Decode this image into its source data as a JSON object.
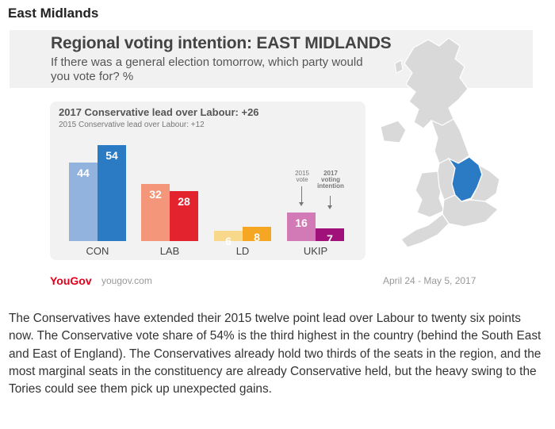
{
  "heading": "East Midlands",
  "chart": {
    "title": "Regional voting intention: EAST MIDLANDS",
    "subtitle": "If there was a general election tomorrow, which party would you vote for? %",
    "lead_2017": "2017 Conservative lead over Labour: +26",
    "lead_2015": "2015 Conservative lead over Labour: +12",
    "annotation_2015": "2015 vote",
    "annotation_2017": "2017 voting intention",
    "logo": "YouGov",
    "site": "yougov.com",
    "dates": "April 24 - May 5, 2017",
    "map_highlight_color": "#2b7bc4"
  },
  "chart_data": {
    "type": "bar",
    "title": "Regional voting intention: EAST MIDLANDS",
    "subtitle": "If there was a general election tomorrow, which party would you vote for? %",
    "categories": [
      "CON",
      "LAB",
      "LD",
      "UKIP"
    ],
    "series": [
      {
        "name": "2015 vote",
        "values": [
          44,
          32,
          6,
          16
        ],
        "colors": [
          "#93b3df",
          "#f3967a",
          "#f8d98b",
          "#d27ab5"
        ]
      },
      {
        "name": "2017 voting intention",
        "values": [
          54,
          28,
          8,
          7
        ],
        "colors": [
          "#2b7bc4",
          "#e3232d",
          "#f5a623",
          "#a0127a"
        ]
      }
    ],
    "ylim": [
      0,
      54
    ],
    "grid": false,
    "legend": "annotation above UKIP bars"
  },
  "body_text": "The Conservatives have extended their 2015 twelve point lead over Labour to twenty six points now. The Conservative vote share of 54% is the third highest in the country (behind the South East and East of England). The Conservatives already hold two thirds of the seats in the region, and the most marginal seats in the constituency are already Conservative held, but the heavy swing to the Tories could see them pick up unexpected gains."
}
